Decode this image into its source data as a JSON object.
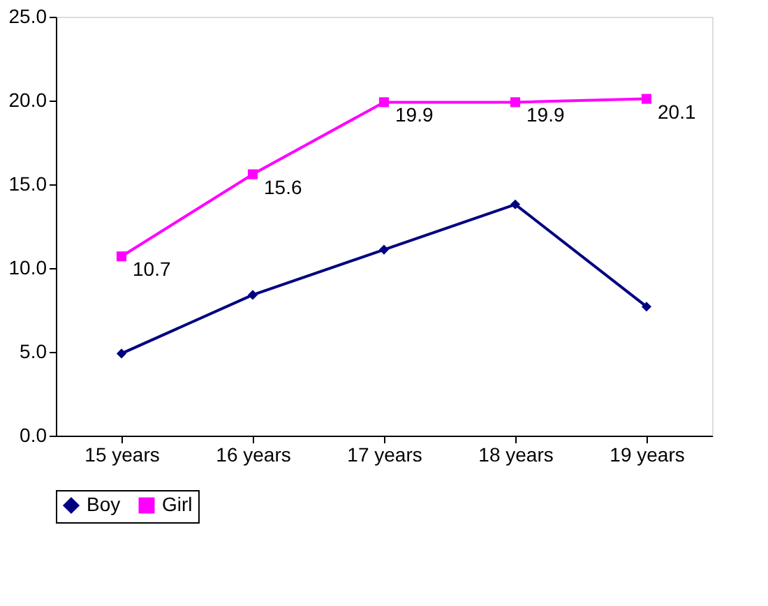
{
  "chart_data": {
    "type": "line",
    "categories": [
      "15 years",
      "16 years",
      "17 years",
      "18 years",
      "19 years"
    ],
    "series": [
      {
        "name": "Boy",
        "color": "#000080",
        "marker": "diamond",
        "values": [
          4.9,
          8.4,
          11.1,
          13.8,
          7.7
        ]
      },
      {
        "name": "Girl",
        "color": "#ff00ff",
        "marker": "square",
        "values": [
          10.7,
          15.6,
          19.9,
          19.9,
          20.1
        ],
        "value_labels": [
          "10.7",
          "15.6",
          "19.9",
          "19.9",
          "20.1"
        ]
      }
    ],
    "ylim": [
      0,
      25
    ],
    "yticks": [
      {
        "value": 0,
        "label": "0.0"
      },
      {
        "value": 5,
        "label": "5.0"
      },
      {
        "value": 10,
        "label": "10.0"
      },
      {
        "value": 15,
        "label": "15.0"
      },
      {
        "value": 20,
        "label": "20.0"
      },
      {
        "value": 25,
        "label": "25.0"
      }
    ],
    "grid": false,
    "legend": "bottom",
    "line_style": "solid"
  }
}
